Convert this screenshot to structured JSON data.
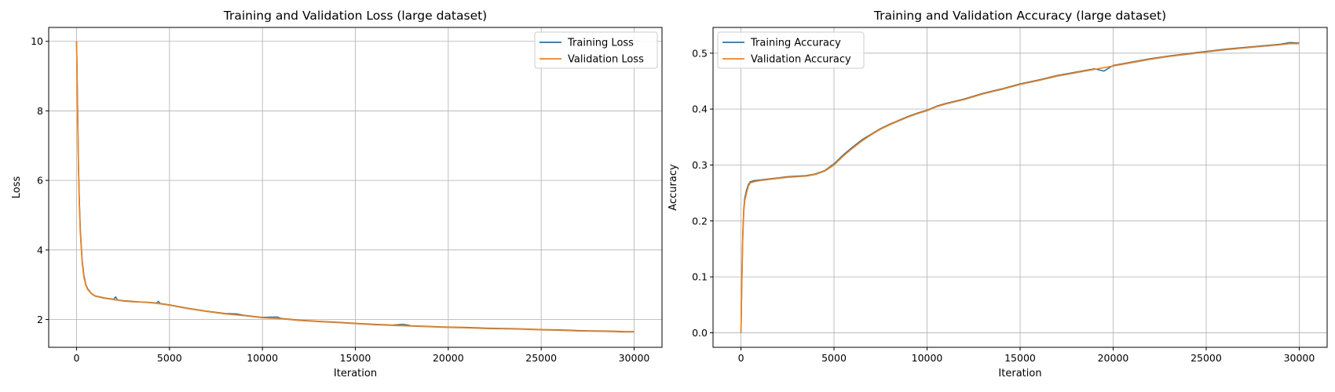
{
  "colors": {
    "training": "#1f77b4",
    "validation": "#ff7f0e",
    "grid": "#b0b0b0"
  },
  "chart_data": [
    {
      "type": "line",
      "title": "Training and Validation Loss (large dataset)",
      "xlabel": "Iteration",
      "ylabel": "Loss",
      "xlim": [
        -1500,
        31500
      ],
      "ylim": [
        1.2,
        10.4
      ],
      "xticks": [
        0,
        5000,
        10000,
        15000,
        20000,
        25000,
        30000
      ],
      "yticks": [
        2,
        4,
        6,
        8,
        10
      ],
      "grid": true,
      "legend_position": "top-right",
      "series": [
        {
          "name": "Training Loss",
          "x": [
            0,
            50,
            100,
            150,
            200,
            300,
            400,
            500,
            600,
            800,
            1000,
            1500,
            2000,
            2100,
            2200,
            2500,
            3000,
            3500,
            4000,
            4300,
            4400,
            4500,
            5000,
            6000,
            7000,
            8000,
            8600,
            9000,
            10000,
            10800,
            11000,
            12000,
            13000,
            14000,
            15000,
            16000,
            17000,
            17600,
            18000,
            19000,
            20000,
            21000,
            22000,
            23000,
            24000,
            25000,
            26000,
            27000,
            28000,
            29000,
            29500,
            30000
          ],
          "y": [
            10.0,
            8.3,
            6.5,
            5.4,
            4.6,
            3.7,
            3.25,
            3.0,
            2.88,
            2.75,
            2.68,
            2.62,
            2.58,
            2.65,
            2.56,
            2.54,
            2.52,
            2.5,
            2.49,
            2.47,
            2.52,
            2.46,
            2.42,
            2.32,
            2.24,
            2.17,
            2.16,
            2.12,
            2.06,
            2.07,
            2.03,
            1.98,
            1.95,
            1.92,
            1.89,
            1.86,
            1.84,
            1.86,
            1.82,
            1.8,
            1.78,
            1.77,
            1.75,
            1.74,
            1.73,
            1.71,
            1.7,
            1.68,
            1.67,
            1.66,
            1.65,
            1.65
          ]
        },
        {
          "name": "Validation Loss",
          "x": [
            0,
            50,
            100,
            150,
            200,
            300,
            400,
            500,
            600,
            800,
            1000,
            1500,
            2000,
            2500,
            3000,
            3500,
            4000,
            4500,
            5000,
            6000,
            7000,
            8000,
            9000,
            10000,
            11000,
            12000,
            13000,
            14000,
            15000,
            16000,
            17000,
            18000,
            19000,
            20000,
            21000,
            22000,
            23000,
            24000,
            25000,
            26000,
            27000,
            28000,
            29000,
            29500,
            30000
          ],
          "y": [
            10.0,
            8.2,
            6.4,
            5.3,
            4.5,
            3.65,
            3.2,
            2.98,
            2.86,
            2.74,
            2.67,
            2.61,
            2.57,
            2.53,
            2.51,
            2.5,
            2.48,
            2.45,
            2.41,
            2.31,
            2.23,
            2.16,
            2.11,
            2.05,
            2.02,
            1.97,
            1.94,
            1.91,
            1.88,
            1.85,
            1.83,
            1.81,
            1.79,
            1.77,
            1.76,
            1.74,
            1.73,
            1.72,
            1.7,
            1.69,
            1.67,
            1.66,
            1.65,
            1.64,
            1.64
          ]
        }
      ]
    },
    {
      "type": "line",
      "title": "Training and Validation Accuracy (large dataset)",
      "xlabel": "Iteration",
      "ylabel": "Accuracy",
      "xlim": [
        -1500,
        31500
      ],
      "ylim": [
        -0.026,
        0.546
      ],
      "xticks": [
        0,
        5000,
        10000,
        15000,
        20000,
        25000,
        30000
      ],
      "yticks": [
        0.0,
        0.1,
        0.2,
        0.3,
        0.4,
        0.5
      ],
      "grid": true,
      "legend_position": "top-left",
      "series": [
        {
          "name": "Training Accuracy",
          "x": [
            0,
            50,
            100,
            150,
            200,
            300,
            400,
            500,
            700,
            1000,
            1500,
            2000,
            2500,
            3000,
            3500,
            4000,
            4500,
            5000,
            5500,
            6000,
            6500,
            7000,
            7500,
            8000,
            8500,
            9000,
            9500,
            10000,
            10500,
            11000,
            12000,
            13000,
            14000,
            15000,
            16000,
            17000,
            18000,
            19000,
            19500,
            20000,
            21000,
            22000,
            23000,
            24000,
            25000,
            26000,
            27000,
            28000,
            29000,
            29500,
            30000
          ],
          "y": [
            0.0,
            0.1,
            0.18,
            0.22,
            0.24,
            0.255,
            0.265,
            0.27,
            0.272,
            0.273,
            0.275,
            0.277,
            0.279,
            0.28,
            0.281,
            0.284,
            0.29,
            0.302,
            0.318,
            0.332,
            0.345,
            0.355,
            0.365,
            0.373,
            0.38,
            0.387,
            0.393,
            0.398,
            0.405,
            0.41,
            0.418,
            0.428,
            0.436,
            0.445,
            0.452,
            0.46,
            0.466,
            0.472,
            0.468,
            0.478,
            0.484,
            0.49,
            0.495,
            0.499,
            0.503,
            0.507,
            0.51,
            0.513,
            0.516,
            0.519,
            0.518
          ]
        },
        {
          "name": "Validation Accuracy",
          "x": [
            0,
            50,
            100,
            150,
            200,
            300,
            400,
            500,
            700,
            1000,
            1500,
            2000,
            2500,
            3000,
            3500,
            4000,
            4500,
            5000,
            5500,
            6000,
            6500,
            7000,
            7500,
            8000,
            8500,
            9000,
            9500,
            10000,
            10500,
            11000,
            12000,
            13000,
            14000,
            15000,
            16000,
            17000,
            18000,
            19000,
            20000,
            21000,
            22000,
            23000,
            24000,
            25000,
            26000,
            27000,
            28000,
            29000,
            29500,
            30000
          ],
          "y": [
            0.0,
            0.09,
            0.17,
            0.215,
            0.235,
            0.25,
            0.262,
            0.268,
            0.27,
            0.272,
            0.274,
            0.276,
            0.278,
            0.279,
            0.28,
            0.283,
            0.289,
            0.3,
            0.316,
            0.33,
            0.343,
            0.354,
            0.364,
            0.372,
            0.379,
            0.386,
            0.392,
            0.397,
            0.404,
            0.409,
            0.417,
            0.427,
            0.435,
            0.444,
            0.451,
            0.459,
            0.465,
            0.471,
            0.477,
            0.483,
            0.489,
            0.494,
            0.498,
            0.502,
            0.506,
            0.509,
            0.512,
            0.515,
            0.517,
            0.517
          ]
        }
      ]
    }
  ]
}
